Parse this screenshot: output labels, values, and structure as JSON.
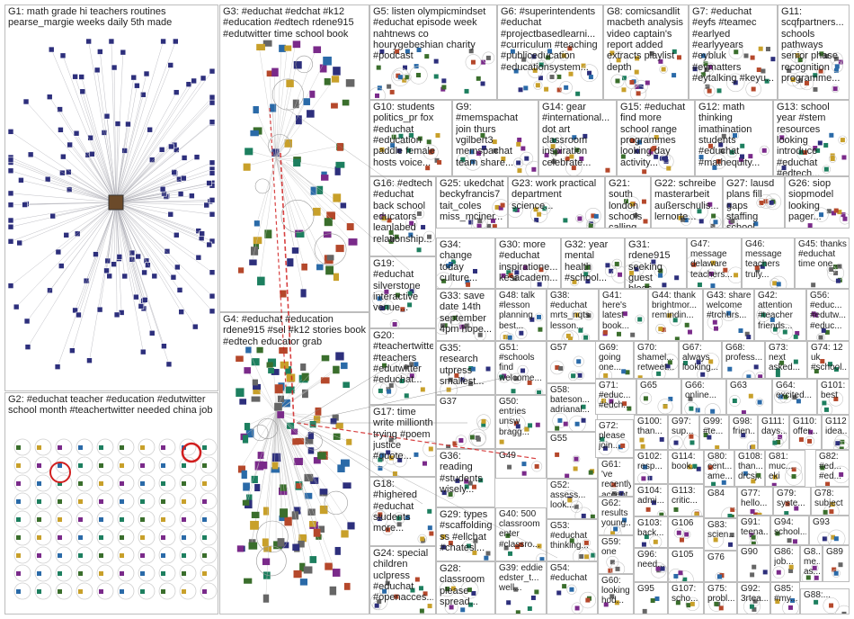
{
  "title": "",
  "colors": {
    "panel_border": "#bdbdbd",
    "edge": "#8a8a8a",
    "edge_red": "#d11f1f",
    "label": "#1f1f1f",
    "node_palette": [
      "#2d2f7c",
      "#3a6e2c",
      "#c8a02a",
      "#7a2a8a",
      "#2a6aa8",
      "#1d7f5f",
      "#b5482b",
      "#666666"
    ]
  },
  "groups": [
    {
      "id": "G1",
      "label": "G1: math grade hi teachers routines pearse_margie weeks daily 5th made"
    },
    {
      "id": "G2",
      "label": "G2: #educhat teacher #education #edutwitter school month #teachertwitter needed china job"
    },
    {
      "id": "G3",
      "label": "G3: #educhat #edchat #k12 #education #edtech rdene915 #edutwitter time school book"
    },
    {
      "id": "G4",
      "label": "G4: #educhat #education rdene915 #sel #k12 stories book #edtech educator grab"
    },
    {
      "id": "G5",
      "label": "G5: listen olympicmindset #educhat episode week nahtnews co hourygebeshian charity #podcast"
    },
    {
      "id": "G6",
      "label": "G6: #superintendents #educhat #projectbasedlearni... #curriculum #teaching #publiceducation #educationsystem..."
    },
    {
      "id": "G7",
      "label": "G7: #educhat #eyfs #teamec #earlyed #earlyyears #eybluk #eymatters #eytalking #keyu..."
    },
    {
      "id": "G8",
      "label": "G8: comicsandlit macbeth analysis video captain's report added extracts playlist depth"
    },
    {
      "id": "G9",
      "label": "G9: #memspachat join thurs vgilbert3 memspachat team share..."
    },
    {
      "id": "G10",
      "label": "G10: students politics_pr fox #educhat #education paddle female hosts voice..."
    },
    {
      "id": "G11",
      "label": "G11: scqfpartners... schools pathways senior phase recognition programme..."
    },
    {
      "id": "G12",
      "label": "G12: math thinking imathination students #educhat #mathequity..."
    },
    {
      "id": "G13",
      "label": "G13: school year #stem resources looking introduce #educhat #edtech..."
    },
    {
      "id": "G14",
      "label": "G14: gear #international... dot art classroom inspiration celebrate..."
    },
    {
      "id": "G15",
      "label": "G15: #educhat find more school range programmes looking day activity..."
    },
    {
      "id": "G16",
      "label": "G16: #edtech #educhat back school educators leanlabed relationship..."
    },
    {
      "id": "G17",
      "label": "G17: time write millionth trying #poem justice #quote..."
    },
    {
      "id": "G18",
      "label": "G18: #highered #educhat students more..."
    },
    {
      "id": "G19",
      "label": "G19: #educhat silverstone interactive venue..."
    },
    {
      "id": "G20",
      "label": "G20: #teachertwitter #teachers #edutwitter #educhat..."
    },
    {
      "id": "G21",
      "label": "G21: south london schools calling teachers join..."
    },
    {
      "id": "G22",
      "label": "G22: schreibe masterarbeit außerschulis... lernorte..."
    },
    {
      "id": "G23",
      "label": "G23: work practical department science..."
    },
    {
      "id": "G24",
      "label": "G24: special children uclpress #educhat #openacces..."
    },
    {
      "id": "G25",
      "label": "G25: ukedchat beckyfrancis7 tait_coles miss_mciner..."
    },
    {
      "id": "G26",
      "label": "G26: siop siopmodel looking pager..."
    },
    {
      "id": "G27",
      "label": "G27: lausd plans fill gaps staffing school year..."
    },
    {
      "id": "G28",
      "label": "G28: classroom please spread..."
    },
    {
      "id": "G29",
      "label": "G29: types #scaffolding ss #ellchat #chatesl..."
    },
    {
      "id": "G30",
      "label": "G30: more #educhat inspiratione... kesacadem..."
    },
    {
      "id": "G31",
      "label": "G31: rdene915 seeking guest blogs..."
    },
    {
      "id": "G32",
      "label": "G32: year mental health #school..."
    },
    {
      "id": "G33",
      "label": "G33: save date 14th september 4pm hope..."
    },
    {
      "id": "G34",
      "label": "G34: change today culture..."
    },
    {
      "id": "G35",
      "label": "G35: research utpress smallest..."
    },
    {
      "id": "G36",
      "label": "G36: reading #students wisely..."
    },
    {
      "id": "G37",
      "label": "G37"
    },
    {
      "id": "G38",
      "label": "G38: #educhat mrts_nqts lesson..."
    },
    {
      "id": "G39",
      "label": "G39: eddie edster_t... well..."
    },
    {
      "id": "G40",
      "label": "G40: 500 classroom enter #classro..."
    },
    {
      "id": "G41",
      "label": "G41: here's latest book..."
    },
    {
      "id": "G42",
      "label": "G42: attention #teacher friends..."
    },
    {
      "id": "G43",
      "label": "G43: share welcome #trchurs..."
    },
    {
      "id": "G44",
      "label": "G44: thank brightmor... remindin..."
    },
    {
      "id": "G45",
      "label": "G45: thanks #educhat time one..."
    },
    {
      "id": "G46",
      "label": "G46: message teachers truly..."
    },
    {
      "id": "G47",
      "label": "G47: message delaware teachers..."
    },
    {
      "id": "G48",
      "label": "G48: talk #lesson planning best..."
    },
    {
      "id": "G49",
      "label": "G49"
    },
    {
      "id": "G50",
      "label": "G50: entries unsw bragg..."
    },
    {
      "id": "G51",
      "label": "G51: #schools find welcome..."
    },
    {
      "id": "G52",
      "label": "G52: assess... look..."
    },
    {
      "id": "G53",
      "label": "G53: #educhat thinking..."
    },
    {
      "id": "G54",
      "label": "G54: #educhat"
    },
    {
      "id": "G55",
      "label": "G55"
    },
    {
      "id": "G56",
      "label": "G56: #educ... #edutw... #educ..."
    },
    {
      "id": "G57",
      "label": "G57"
    },
    {
      "id": "G58",
      "label": "G58: bateson... adrianal..."
    },
    {
      "id": "G59",
      "label": "G59: one"
    },
    {
      "id": "G60",
      "label": "G60: looking hod..."
    },
    {
      "id": "G61",
      "label": "G61: 've recently accept..."
    },
    {
      "id": "G62",
      "label": "G62: results young..."
    },
    {
      "id": "G63",
      "label": "G63"
    },
    {
      "id": "G64",
      "label": "G64: excited..."
    },
    {
      "id": "G65",
      "label": "G65"
    },
    {
      "id": "G66",
      "label": "G66: online..."
    },
    {
      "id": "G67",
      "label": "G67: always looking..."
    },
    {
      "id": "G68",
      "label": "G68: profess..."
    },
    {
      "id": "G69",
      "label": "G69: going one..."
    },
    {
      "id": "G70",
      "label": "G70: shamel... retweet..."
    },
    {
      "id": "G71",
      "label": "G71: #educ... #edch..."
    },
    {
      "id": "G72",
      "label": "G72: please join..."
    },
    {
      "id": "G73",
      "label": "G73: next asked..."
    },
    {
      "id": "G74",
      "label": "G74: 12 uk #school..."
    },
    {
      "id": "G75",
      "label": "G75: probl..."
    },
    {
      "id": "G76",
      "label": "G76"
    },
    {
      "id": "G77",
      "label": "G77: hello..."
    },
    {
      "id": "G78",
      "label": "G78: subject"
    },
    {
      "id": "G79",
      "label": "G79: syste..."
    },
    {
      "id": "G80",
      "label": "G80: cent... ame..."
    },
    {
      "id": "G81",
      "label": "G81: muc... eki"
    },
    {
      "id": "G82",
      "label": "G82: #ed... #ed..."
    },
    {
      "id": "G83",
      "label": "G83: scien..."
    },
    {
      "id": "G84",
      "label": "G84"
    },
    {
      "id": "G85",
      "label": "G85: #my..."
    },
    {
      "id": "G86",
      "label": "G86: job..."
    },
    {
      "id": "G87",
      "label": "G8... me... as..."
    },
    {
      "id": "G88",
      "label": "G88:..."
    },
    {
      "id": "G89",
      "label": "G89"
    },
    {
      "id": "G90",
      "label": "G90"
    },
    {
      "id": "G91",
      "label": "G91: teena..."
    },
    {
      "id": "G92",
      "label": "G92: 3rtea..."
    },
    {
      "id": "G93",
      "label": "G93"
    },
    {
      "id": "G94",
      "label": "G94: school..."
    },
    {
      "id": "G95",
      "label": "G95"
    },
    {
      "id": "G96",
      "label": "G96: need..."
    },
    {
      "id": "G97",
      "label": "G97: sup..."
    },
    {
      "id": "G98",
      "label": "G98: frien..."
    },
    {
      "id": "G99",
      "label": "G99: #te..."
    },
    {
      "id": "G100",
      "label": "G100: than..."
    },
    {
      "id": "G101",
      "label": "G101: best"
    },
    {
      "id": "G102",
      "label": "G102: resp..."
    },
    {
      "id": "G103",
      "label": "G103: back..."
    },
    {
      "id": "G104",
      "label": "G104: admi..."
    },
    {
      "id": "G105",
      "label": "G105"
    },
    {
      "id": "G106",
      "label": "G106"
    },
    {
      "id": "G107",
      "label": "G107: scho..."
    },
    {
      "id": "G108",
      "label": "G108: than... drcsj..."
    },
    {
      "id": "G110",
      "label": "G110: offer..."
    },
    {
      "id": "G111",
      "label": "G111: days..."
    },
    {
      "id": "G112",
      "label": "G112: idea..."
    },
    {
      "id": "G113",
      "label": "G113: critic..."
    },
    {
      "id": "G114",
      "label": "G114: book..."
    }
  ]
}
